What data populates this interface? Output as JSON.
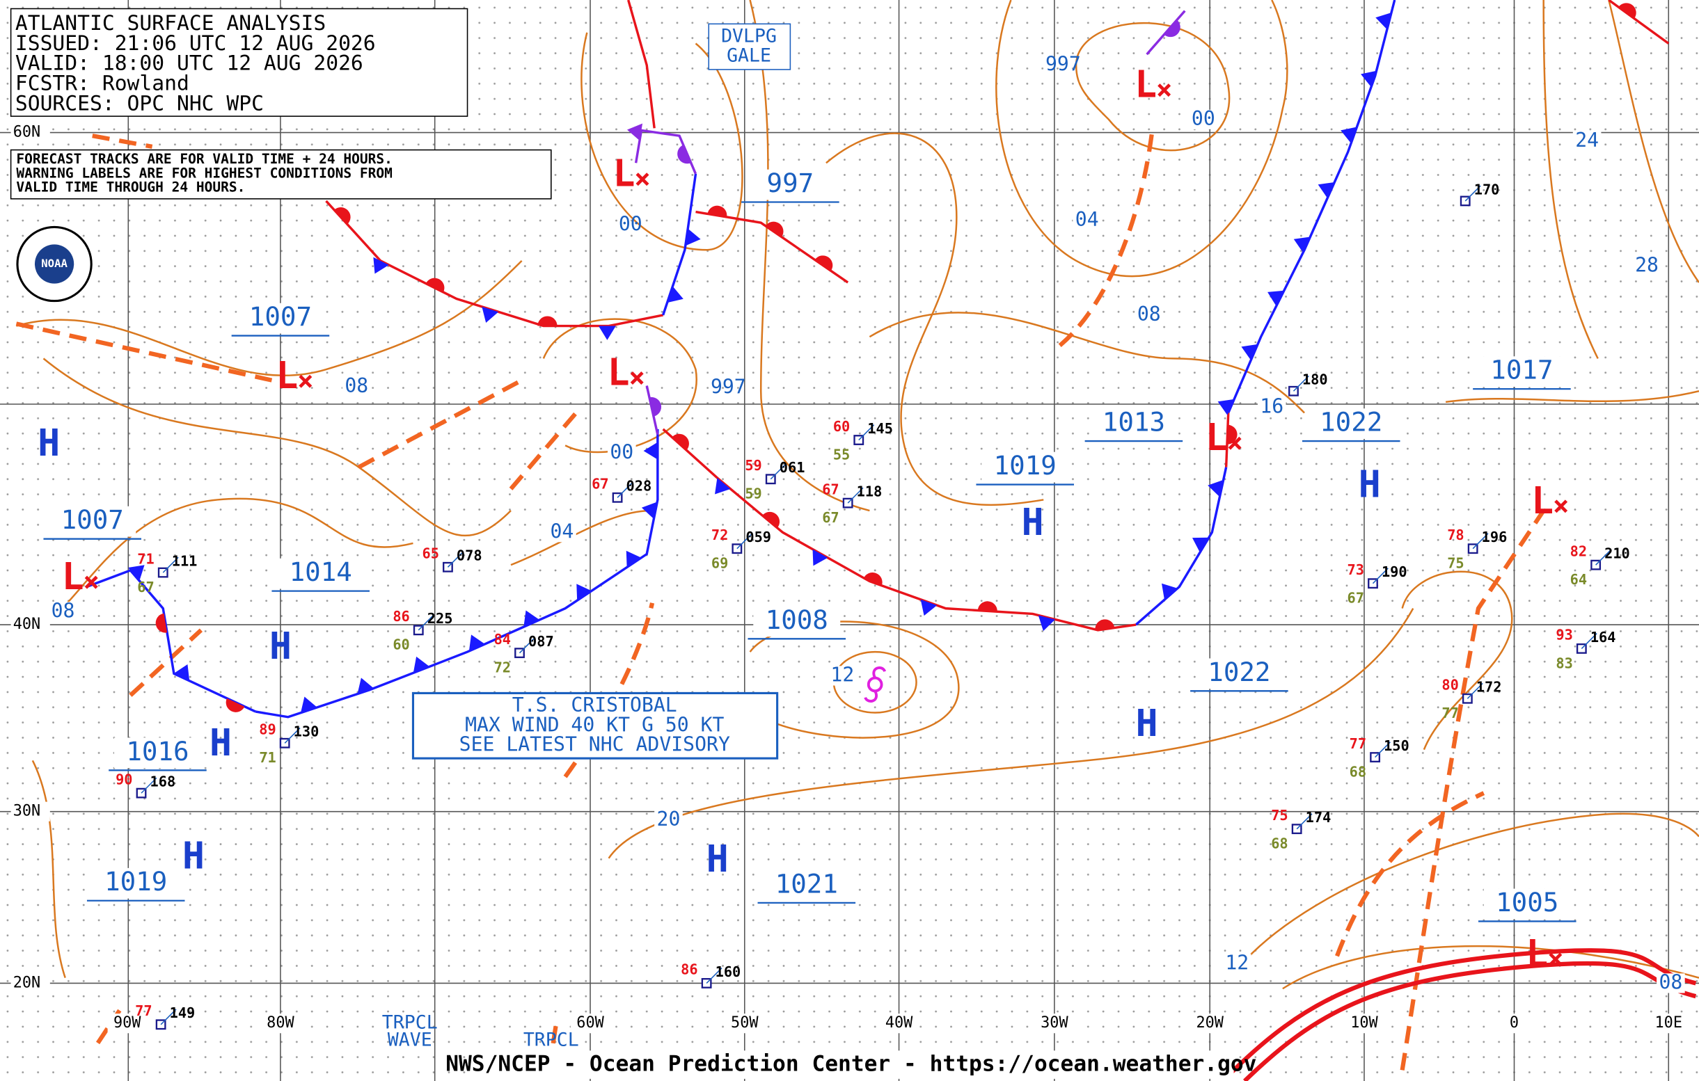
{
  "header": {
    "lines": [
      "ATLANTIC SURFACE ANALYSIS",
      "ISSUED: 21:06 UTC 12 AUG 2026",
      "VALID:  18:00 UTC 12 AUG 2026",
      "FCSTR:  Rowland",
      "SOURCES: OPC NHC WPC"
    ]
  },
  "note": {
    "lines": [
      "FORECAST TRACKS ARE FOR VALID TIME + 24 HOURS.",
      "WARNING LABELS ARE FOR HIGHEST CONDITIONS FROM",
      "VALID TIME THROUGH 24 HOURS."
    ]
  },
  "logo": "NOAA",
  "gale_box": [
    "DVLPG",
    "GALE"
  ],
  "storm_box": [
    "T.S. CRISTOBAL",
    "MAX WIND 40 KT G 50 KT",
    "SEE LATEST NHC ADVISORY"
  ],
  "wave_labels": [
    "TRPCL",
    "WAVE",
    "TRPCL"
  ],
  "lat_labels": [
    "60N",
    "40N",
    "30N",
    "20N"
  ],
  "lon_labels": [
    "90W",
    "80W",
    "60W",
    "50W",
    "40W",
    "30W",
    "20W",
    "10W",
    "0",
    "10E"
  ],
  "centers": [
    {
      "kind": "H"
    },
    {
      "kind": "L",
      "value": "1007"
    },
    {
      "kind": "L",
      "value": "00"
    },
    {
      "kind": "L",
      "value": "997"
    },
    {
      "kind": "L",
      "value": "997"
    },
    {
      "kind": "L",
      "value": "1013"
    },
    {
      "kind": "L",
      "value": "1007"
    },
    {
      "kind": "L"
    },
    {
      "kind": "L",
      "value": "1005"
    },
    {
      "kind": "H",
      "value": "1014"
    },
    {
      "kind": "H",
      "value": "1016"
    },
    {
      "kind": "H",
      "value": "1019"
    },
    {
      "kind": "H",
      "value": "1019"
    },
    {
      "kind": "H",
      "value": "1022"
    },
    {
      "kind": "H",
      "value": "1022"
    },
    {
      "kind": "H",
      "value": "1021"
    }
  ],
  "pressure_labels": [
    "997",
    "1017",
    "1008",
    "1007"
  ],
  "isobar_labels": [
    "08",
    "04",
    "12",
    "20",
    "04",
    "08",
    "00",
    "16",
    "24",
    "28",
    "12",
    "08",
    "00",
    "08"
  ],
  "stations": [
    {
      "pressure": "145",
      "temp": "60",
      "dewpoint": "55"
    },
    {
      "pressure": "118",
      "temp": "67",
      "dewpoint": "67"
    },
    {
      "pressure": "061",
      "temp": "59",
      "dewpoint": "59"
    },
    {
      "pressure": "059",
      "temp": "72",
      "dewpoint": "69"
    },
    {
      "pressure": "028",
      "temp": "67"
    },
    {
      "pressure": "087",
      "temp": "84",
      "dewpoint": "72"
    },
    {
      "pressure": "225",
      "temp": "86",
      "dewpoint": "60"
    },
    {
      "pressure": "130",
      "temp": "89",
      "dewpoint": "71"
    },
    {
      "pressure": "111",
      "temp": "71",
      "dewpoint": "67"
    },
    {
      "pressure": "168",
      "temp": "90"
    },
    {
      "pressure": "196",
      "temp": "78",
      "dewpoint": "75"
    },
    {
      "pressure": "190",
      "temp": "73",
      "dewpoint": "67"
    },
    {
      "pressure": "150",
      "temp": "77",
      "dewpoint": "68"
    },
    {
      "pressure": "174",
      "temp": "75",
      "dewpoint": "68"
    },
    {
      "pressure": "210",
      "temp": "82",
      "dewpoint": "64"
    },
    {
      "pressure": "164",
      "temp": "93",
      "dewpoint": "83"
    },
    {
      "pressure": "172",
      "temp": "80",
      "dewpoint": "77"
    },
    {
      "pressure": "160",
      "temp": "86"
    },
    {
      "pressure": "180"
    },
    {
      "pressure": "170"
    },
    {
      "pressure": "078",
      "temp": "65"
    },
    {
      "pressure": "149",
      "temp": "77"
    }
  ],
  "footer": "NWS/NCEP - Ocean Prediction Center - https://ocean.weather.gov"
}
